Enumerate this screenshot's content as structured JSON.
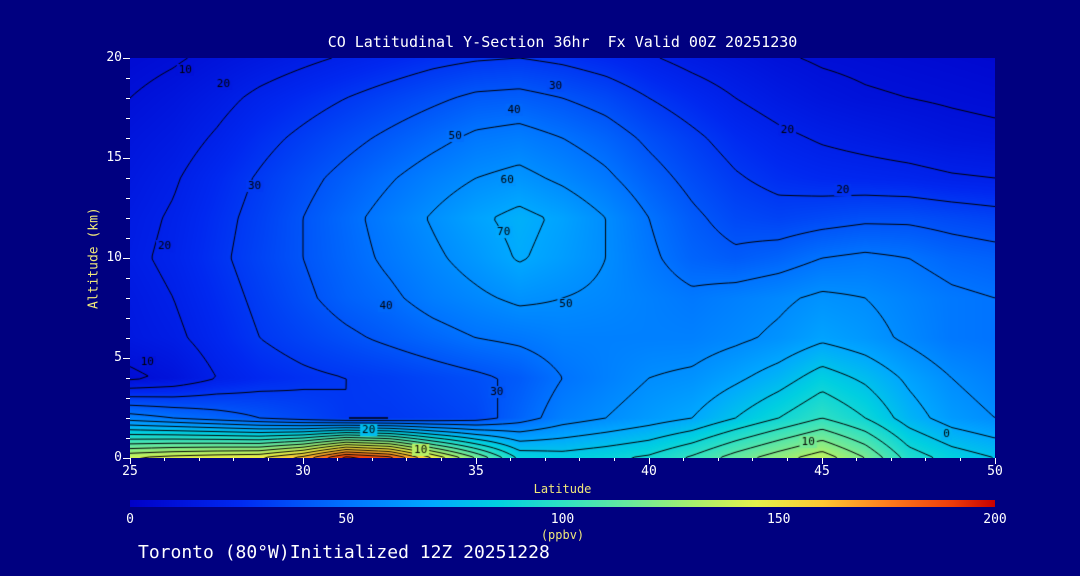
{
  "title": "CO Latitudinal Y-Section 36hr  Fx Valid 00Z 20251230",
  "footer": "Toronto (80°W)Initialized 12Z 20251228",
  "colors": {
    "background": "#000080",
    "text": "#ffffff",
    "axis_title": "#f0e87a",
    "contour": "#000000"
  },
  "axes": {
    "x": {
      "label": "Latitude",
      "min": 25,
      "max": 50,
      "ticks": [
        25,
        30,
        35,
        40,
        45,
        50
      ],
      "minor_step": 1
    },
    "y": {
      "label": "Altitude (km)",
      "min": 0,
      "max": 20,
      "ticks": [
        0,
        5,
        10,
        15,
        20
      ],
      "minor_step": 1
    }
  },
  "colorbar": {
    "label": "(ppbv)",
    "min": 0,
    "max": 200,
    "ticks": [
      0,
      50,
      100,
      150,
      200
    ],
    "stops": [
      [
        0,
        "#0000c8"
      ],
      [
        25,
        "#0028f0"
      ],
      [
        50,
        "#0073ff"
      ],
      [
        70,
        "#00a8ff"
      ],
      [
        85,
        "#00cfe1"
      ],
      [
        100,
        "#2ee0c3"
      ],
      [
        115,
        "#66e89e"
      ],
      [
        130,
        "#a6ef6e"
      ],
      [
        145,
        "#e6f24b"
      ],
      [
        160,
        "#ffc832"
      ],
      [
        175,
        "#ff7d1e"
      ],
      [
        190,
        "#f03c0a"
      ],
      [
        200,
        "#c80000"
      ]
    ]
  },
  "chart_data": {
    "type": "heatmap",
    "title": "CO Latitudinal Y-Section 36hr  Fx Valid 00Z 20251230",
    "xlabel": "Latitude",
    "ylabel": "Altitude (km)",
    "units": "ppbv",
    "xlim": [
      25,
      50
    ],
    "ylim": [
      0,
      20
    ],
    "x": [
      25,
      26.25,
      27.5,
      28.75,
      30,
      31.25,
      32.5,
      33.75,
      35,
      36.25,
      37.5,
      38.75,
      40,
      41.25,
      42.5,
      43.75,
      45,
      46.25,
      47.5,
      48.75,
      50
    ],
    "y": [
      0,
      2,
      4,
      6,
      8,
      10,
      12,
      14,
      16,
      18,
      20
    ],
    "values": [
      [
        140,
        145,
        148,
        150,
        165,
        195,
        185,
        150,
        120,
        88,
        85,
        88,
        92,
        102,
        115,
        126,
        136,
        120,
        96,
        86,
        80
      ],
      [
        55,
        50,
        45,
        40,
        35,
        30,
        30,
        32,
        35,
        45,
        55,
        60,
        65,
        70,
        80,
        90,
        100,
        90,
        75,
        65,
        60
      ],
      [
        8,
        12,
        20,
        25,
        28,
        30,
        32,
        35,
        38,
        42,
        50,
        55,
        60,
        62,
        68,
        75,
        85,
        78,
        68,
        60,
        55
      ],
      [
        15,
        18,
        24,
        30,
        34,
        38,
        42,
        46,
        50,
        52,
        55,
        55,
        55,
        55,
        58,
        62,
        68,
        64,
        58,
        52,
        50
      ],
      [
        16,
        20,
        26,
        32,
        38,
        44,
        48,
        54,
        58,
        62,
        60,
        58,
        55,
        52,
        55,
        58,
        62,
        60,
        56,
        52,
        50
      ],
      [
        18,
        22,
        28,
        34,
        40,
        46,
        52,
        58,
        64,
        71,
        66,
        60,
        52,
        45,
        42,
        45,
        50,
        52,
        50,
        46,
        44
      ],
      [
        17,
        21,
        27,
        33,
        40,
        47,
        54,
        61,
        68,
        73,
        68,
        60,
        50,
        42,
        36,
        34,
        36,
        38,
        38,
        36,
        34
      ],
      [
        15,
        19,
        25,
        31,
        37,
        43,
        49,
        55,
        60,
        63,
        58,
        52,
        44,
        37,
        31,
        27,
        25,
        24,
        23,
        21,
        20
      ],
      [
        13,
        16,
        21,
        27,
        32,
        37,
        42,
        47,
        52,
        54,
        50,
        45,
        38,
        32,
        26,
        22,
        19,
        17,
        15,
        13,
        12
      ],
      [
        10,
        13,
        17,
        22,
        26,
        30,
        34,
        38,
        42,
        43,
        40,
        36,
        30,
        25,
        20,
        16,
        13,
        11,
        10,
        9,
        8
      ],
      [
        7,
        9,
        12,
        15,
        18,
        21,
        24,
        27,
        29,
        30,
        28,
        25,
        21,
        17,
        14,
        11,
        9,
        8,
        7,
        6,
        5
      ]
    ],
    "contour_levels": [
      10,
      20,
      30,
      40,
      50,
      60,
      70,
      80,
      90,
      100,
      110,
      120,
      130,
      140,
      150,
      160,
      170,
      180,
      190
    ],
    "contour_labels": [
      {
        "v": 10,
        "lat": 26.6,
        "alt": 19.4
      },
      {
        "v": 20,
        "lat": 27.7,
        "alt": 18.7
      },
      {
        "v": 30,
        "lat": 37.3,
        "alt": 18.6
      },
      {
        "v": 40,
        "lat": 36.1,
        "alt": 17.4
      },
      {
        "v": 50,
        "lat": 34.4,
        "alt": 16.1
      },
      {
        "v": 60,
        "lat": 35.9,
        "alt": 13.9
      },
      {
        "v": 70,
        "lat": 35.8,
        "alt": 11.3
      },
      {
        "v": 30,
        "lat": 28.6,
        "alt": 13.6
      },
      {
        "v": 20,
        "lat": 26.0,
        "alt": 10.6
      },
      {
        "v": 40,
        "lat": 32.4,
        "alt": 7.6
      },
      {
        "v": 50,
        "lat": 37.6,
        "alt": 7.7
      },
      {
        "v": 10,
        "lat": 25.5,
        "alt": 4.8
      },
      {
        "v": 30,
        "lat": 35.6,
        "alt": 3.3
      },
      {
        "v": 20,
        "lat": 31.9,
        "alt": 1.4
      },
      {
        "v": 10,
        "lat": 33.4,
        "alt": 0.4
      },
      {
        "v": 20,
        "lat": 44.0,
        "alt": 16.4
      },
      {
        "v": 20,
        "lat": 45.6,
        "alt": 13.4
      },
      {
        "v": 10,
        "lat": 44.6,
        "alt": 0.8
      },
      {
        "v": 0,
        "lat": 48.6,
        "alt": 1.2
      }
    ]
  }
}
